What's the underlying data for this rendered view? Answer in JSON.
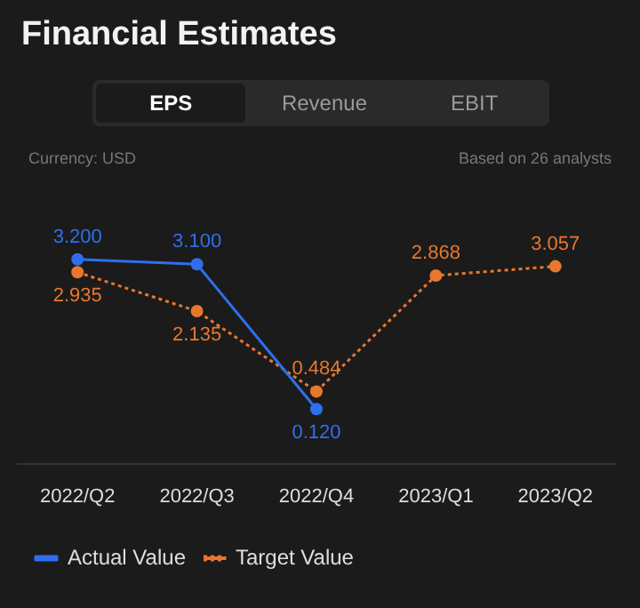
{
  "chart_data": {
    "type": "line",
    "title": "Financial Estimates",
    "annotations": [
      "EPS",
      "Revenue",
      "EBIT",
      "Currency: USD",
      "Based on 26 analysts"
    ],
    "categories": [
      "2022/Q2",
      "2022/Q3",
      "2022/Q4",
      "2023/Q1",
      "2023/Q2"
    ],
    "series": [
      {
        "name": "Actual Value",
        "color": "#2f6fec",
        "line_style": "solid",
        "values": [
          3.2,
          3.1,
          0.12,
          null,
          null
        ],
        "value_labels": [
          "3.200",
          "3.100",
          "0.120",
          null,
          null
        ]
      },
      {
        "name": "Target Value",
        "color": "#e8772e",
        "line_style": "dotted",
        "values": [
          2.935,
          2.135,
          0.484,
          2.868,
          3.057
        ],
        "value_labels": [
          "2.935",
          "2.135",
          "0.484",
          "2.868",
          "3.057"
        ]
      }
    ],
    "marker": "circle",
    "legend": "bottom left"
  }
}
